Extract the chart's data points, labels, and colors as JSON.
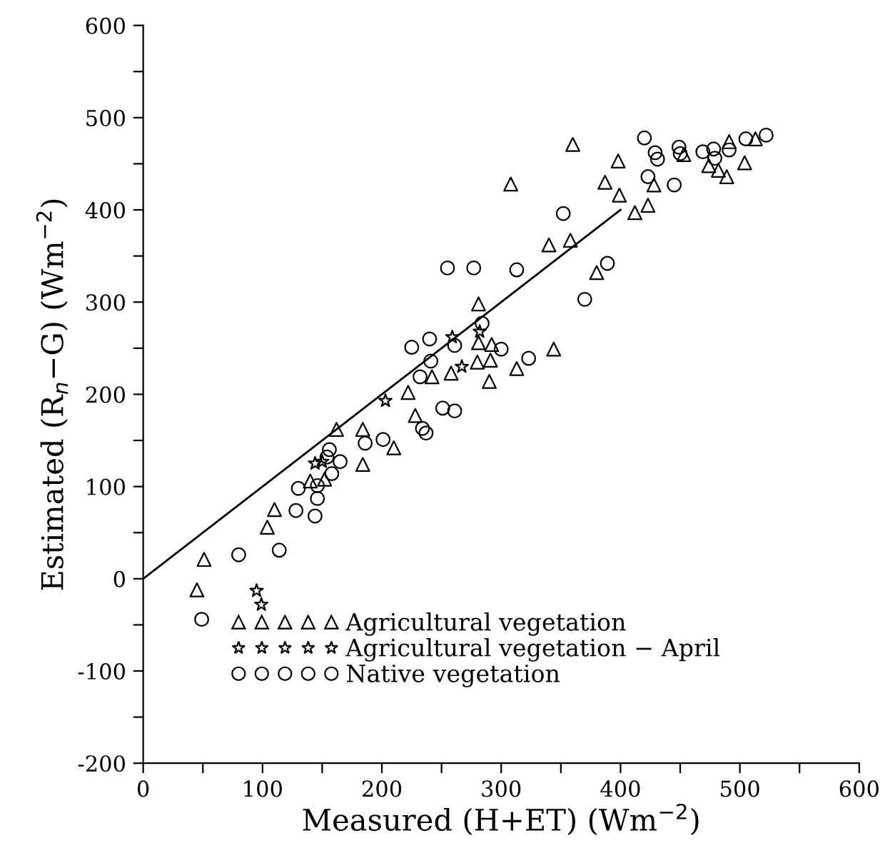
{
  "chart_data": {
    "type": "scatter",
    "xlabel": "Measured (H+ET) (Wm$^{−2}$)",
    "ylabel": "Estimated (R$_{n}$−G) (Wm$^{−2}$)",
    "xlim": [
      0,
      600
    ],
    "ylim": [
      -200,
      600
    ],
    "xticks": [
      0,
      {
        "value": 50,
        "label": null
      },
      100,
      {
        "value": 150,
        "label": null
      },
      200,
      {
        "value": 250,
        "label": null
      },
      300,
      {
        "value": 350,
        "label": null
      },
      400,
      {
        "value": 450,
        "label": null
      },
      500,
      {
        "value": 550,
        "label": null
      },
      600
    ],
    "yticks": [
      -200,
      {
        "value": -150,
        "label": null
      },
      -100,
      {
        "value": -50,
        "label": null
      },
      0,
      {
        "value": 50,
        "label": null
      },
      100,
      {
        "value": 150,
        "label": null
      },
      200,
      {
        "value": 250,
        "label": null
      },
      300,
      {
        "value": 350,
        "label": null
      },
      400,
      {
        "value": 450,
        "label": null
      },
      500,
      {
        "value": 550,
        "label": null
      },
      600
    ],
    "grid": false,
    "legend": "bottom left",
    "series": [
      {
        "name": "Agricultural vegetation",
        "marker": "triangle",
        "color": "#000000",
        "x": [
          45,
          51,
          104,
          110,
          140,
          152,
          162,
          184,
          184,
          210,
          222,
          228,
          242,
          258,
          280,
          281,
          281,
          291,
          292,
          290,
          308,
          313,
          344,
          340,
          358,
          360,
          380,
          387,
          398,
          399,
          412,
          423,
          428,
          453,
          474,
          482,
          489,
          491,
          504,
          513
        ],
        "values": [
          -12,
          21,
          56,
          75,
          106,
          108,
          162,
          162,
          124,
          142,
          202,
          177,
          219,
          223,
          235,
          256,
          298,
          237,
          254,
          214,
          428,
          228,
          249,
          362,
          367,
          471,
          332,
          430,
          453,
          416,
          397,
          405,
          427,
          460,
          448,
          443,
          436,
          474,
          451,
          477
        ]
      },
      {
        "name": "Agricultural vegetation − April",
        "marker": "star",
        "color": "#000000",
        "x": [
          95,
          99,
          144,
          150,
          203,
          259,
          267,
          282
        ],
        "values": [
          -13,
          -28,
          125,
          127,
          193,
          262,
          230,
          268
        ]
      },
      {
        "name": "Native vegetation",
        "marker": "circle",
        "color": "#000000",
        "x": [
          49,
          80,
          114,
          128,
          144,
          130,
          146,
          146,
          158,
          165,
          156,
          154,
          186,
          201,
          234,
          237,
          251,
          261,
          232,
          241,
          225,
          261,
          240,
          284,
          300,
          255,
          277,
          313,
          323,
          370,
          389,
          352,
          420,
          423,
          429,
          431,
          445,
          449,
          450,
          469,
          478,
          479,
          491,
          505,
          522
        ],
        "values": [
          -44,
          26,
          31,
          74,
          68,
          98,
          87,
          101,
          114,
          127,
          140,
          132,
          147,
          151,
          163,
          158,
          185,
          182,
          219,
          236,
          251,
          253,
          260,
          277,
          249,
          337,
          337,
          335,
          239,
          303,
          342,
          396,
          478,
          436,
          462,
          455,
          427,
          468,
          461,
          463,
          466,
          456,
          465,
          477,
          481
        ]
      },
      {
        "type": "line",
        "color": "#000000",
        "line_style": "solid",
        "x": [
          0,
          400
        ],
        "values": [
          0,
          400
        ]
      }
    ]
  }
}
